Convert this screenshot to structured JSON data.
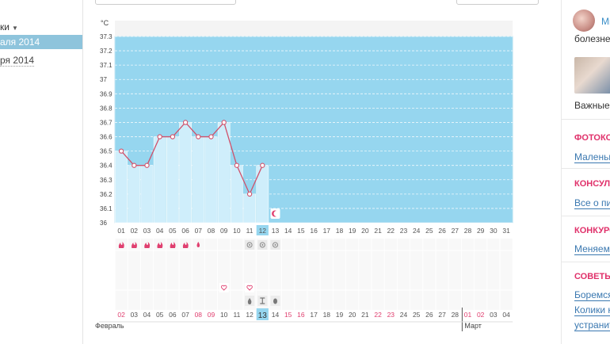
{
  "left_panel": {
    "title": "ки",
    "active_item": "аля 2014",
    "item": "ря 2014"
  },
  "chart": {
    "unit_label": "°C",
    "temp_ticks": [
      "37.3",
      "37.2",
      "37.1",
      "37",
      "36.9",
      "36.8",
      "36.7",
      "36.6",
      "36.5",
      "36.4",
      "36.3",
      "36.2",
      "36.1",
      "36"
    ],
    "cycle_days": [
      "01",
      "02",
      "03",
      "04",
      "05",
      "06",
      "07",
      "08",
      "09",
      "10",
      "11",
      "12",
      "13",
      "14",
      "15",
      "16",
      "17",
      "18",
      "19",
      "20",
      "21",
      "22",
      "23",
      "24",
      "25",
      "26",
      "27",
      "28",
      "29",
      "30",
      "31"
    ],
    "current_cycle_day": "12",
    "dates": [
      "02",
      "03",
      "04",
      "05",
      "06",
      "07",
      "08",
      "09",
      "10",
      "11",
      "12",
      "13",
      "14",
      "15",
      "16",
      "17",
      "18",
      "19",
      "20",
      "21",
      "22",
      "23",
      "24",
      "25",
      "26",
      "27",
      "28",
      "01",
      "02",
      "03",
      "04"
    ],
    "date_colors": [
      "#e04070",
      "#555",
      "#555",
      "#555",
      "#555",
      "#555",
      "#e04070",
      "#e04070",
      "#555",
      "#555",
      "#555",
      "#555",
      "#555",
      "#e04070",
      "#e04070",
      "#555",
      "#555",
      "#555",
      "#555",
      "#555",
      "#e04070",
      "#e04070",
      "#555",
      "#555",
      "#555",
      "#555",
      "#555",
      "#e04070",
      "#e04070",
      "#555",
      "#555"
    ],
    "current_date": "13",
    "month_start": "Февраль",
    "month_next": "Март",
    "colors": {
      "background": "#96d6ef",
      "bar": "#cfeefb",
      "line": "#d0506a",
      "marker": "#d0506a"
    }
  },
  "chart_data": {
    "type": "line",
    "title": "",
    "xlabel": "",
    "ylabel": "°C",
    "ylim": [
      36,
      37.3
    ],
    "x": [
      1,
      2,
      3,
      4,
      5,
      6,
      7,
      8,
      9,
      10,
      11,
      12
    ],
    "series": [
      {
        "values": [
          36.5,
          36.4,
          36.4,
          36.6,
          36.6,
          36.7,
          36.6,
          36.6,
          36.7,
          36.4,
          36.2,
          36.4
        ]
      }
    ]
  },
  "symbols": {
    "fire_days": [
      1,
      2,
      3,
      4,
      5,
      6
    ],
    "drop_day": 7,
    "circle_days": [
      11,
      12,
      13
    ],
    "heart_days": [
      9,
      11
    ],
    "bottom_icon_days": [
      11,
      12,
      13
    ],
    "moon_day": 13
  },
  "right_column": {
    "avatar_link": "Ми",
    "text1": "болезне",
    "text2": "Важные",
    "sections": [
      {
        "heading": "ФОТОКО",
        "link": "Маленьк"
      },
      {
        "heading": "КОНСУЛ",
        "link": "Все о пи"
      },
      {
        "heading": "КОНКУРС",
        "link": "Меняем"
      },
      {
        "heading": "СОВЕТЫ",
        "link": "Боремся"
      }
    ],
    "extra_links": [
      "Колики н",
      "устранит"
    ]
  }
}
